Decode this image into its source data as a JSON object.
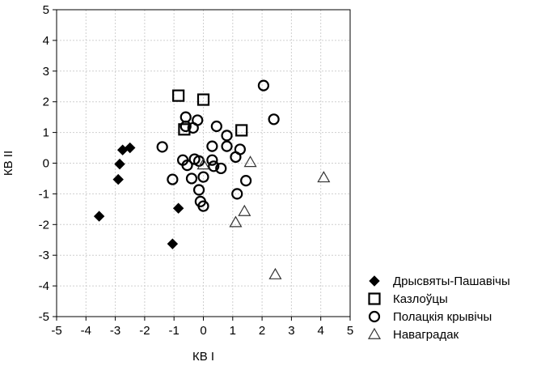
{
  "chart_data": {
    "type": "scatter",
    "title": "",
    "xlabel": "КВ І",
    "ylabel": "КВ ІІ",
    "xlim": [
      -5,
      5
    ],
    "ylim": [
      -5,
      5
    ],
    "xticks": [
      "-5",
      "-4",
      "-3",
      "-2",
      "-1",
      "0",
      "1",
      "2",
      "3",
      "4",
      "5"
    ],
    "yticks": [
      "-5",
      "-4",
      "-3",
      "-2",
      "-1",
      "0",
      "1",
      "2",
      "3",
      "4",
      "5"
    ],
    "grid": true,
    "legend_position": "bottom-right, outside plot",
    "series": [
      {
        "name": "Дрысвяты-Пашавічы",
        "marker": "diamond-filled",
        "points": [
          [
            -3.55,
            -1.73
          ],
          [
            -2.9,
            -0.53
          ],
          [
            -2.85,
            -0.03
          ],
          [
            -2.75,
            0.43
          ],
          [
            -2.5,
            0.5
          ],
          [
            -1.05,
            -2.63
          ],
          [
            -0.85,
            -1.47
          ]
        ]
      },
      {
        "name": "Казлоўцы",
        "marker": "square-open",
        "points": [
          [
            -0.85,
            2.2
          ],
          [
            -0.65,
            1.1
          ],
          [
            0.0,
            2.07
          ],
          [
            1.3,
            1.07
          ]
        ]
      },
      {
        "name": "Полацкія крывічы",
        "marker": "circle-open",
        "points": [
          [
            2.05,
            2.53
          ],
          [
            2.4,
            1.43
          ],
          [
            -1.4,
            0.53
          ],
          [
            -0.6,
            1.5
          ],
          [
            -0.6,
            1.2
          ],
          [
            -0.35,
            1.15
          ],
          [
            -0.2,
            1.4
          ],
          [
            0.45,
            1.2
          ],
          [
            0.8,
            0.9
          ],
          [
            0.8,
            0.55
          ],
          [
            1.25,
            0.45
          ],
          [
            1.1,
            0.2
          ],
          [
            0.3,
            0.55
          ],
          [
            0.3,
            0.1
          ],
          [
            -0.7,
            0.1
          ],
          [
            -0.55,
            -0.07
          ],
          [
            -0.3,
            0.13
          ],
          [
            -0.15,
            0.07
          ],
          [
            0.35,
            -0.1
          ],
          [
            0.6,
            -0.17
          ],
          [
            0.0,
            -0.45
          ],
          [
            -0.4,
            -0.5
          ],
          [
            -1.05,
            -0.53
          ],
          [
            -0.15,
            -0.87
          ],
          [
            1.45,
            -0.57
          ],
          [
            1.15,
            -1.0
          ],
          [
            -0.1,
            -1.25
          ],
          [
            0.0,
            -1.4
          ]
        ]
      },
      {
        "name": "Наваградак",
        "marker": "triangle-open",
        "points": [
          [
            1.6,
            0.03
          ],
          [
            4.1,
            -0.47
          ],
          [
            0.0,
            -0.05
          ],
          [
            1.4,
            -1.57
          ],
          [
            1.1,
            -1.93
          ],
          [
            2.45,
            -3.63
          ]
        ]
      }
    ]
  }
}
